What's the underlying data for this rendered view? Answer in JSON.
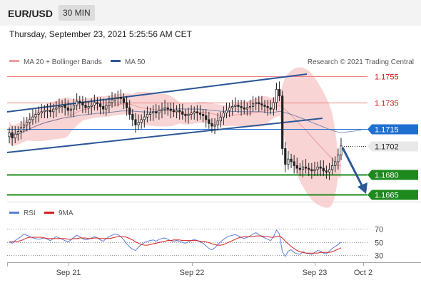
{
  "header": {
    "pair": "EUR/USD",
    "timeframe": "30 MIN",
    "datetime": "Thursday, September 23, 2021 5:25:56 AM CET"
  },
  "legend": {
    "bollinger": "MA 20 + Bollinger Bands",
    "ma50": "MA 50",
    "credit": "Research © 2021 Trading Central"
  },
  "rsi_legend": {
    "rsi": "RSI",
    "ma": "9MA"
  },
  "colors": {
    "candle": "#222222",
    "trendline": "#2b5797",
    "support": "#1e8a1e",
    "resistance": "#f08080",
    "current": "#1f6fd1",
    "band": "#f7c6c6",
    "ma20": "#f29a9a",
    "ma50": "#2b5797",
    "rsi": "#5b7fdb",
    "rsi_ma": "#d61f1f"
  },
  "chart_data": [
    {
      "type": "candlestick",
      "x_ticks": [
        "Sep 21",
        "Sep 22",
        "Sep 23",
        "Oct 2"
      ],
      "y_range": [
        1.1652,
        1.1762
      ],
      "levels": [
        {
          "value": 1.1755,
          "label": "1.1755",
          "kind": "resistance"
        },
        {
          "value": 1.1735,
          "label": "1.1735",
          "kind": "resistance"
        },
        {
          "value": 1.1715,
          "label": "1.1715",
          "kind": "current"
        },
        {
          "value": 1.1702,
          "label": "1.1702",
          "kind": "last"
        },
        {
          "value": 1.168,
          "label": "1.1680",
          "kind": "support"
        },
        {
          "value": 1.1665,
          "label": "1.1665",
          "kind": "support"
        }
      ],
      "close": [
        1.1712,
        1.1708,
        1.1711,
        1.1713,
        1.1716,
        1.1718,
        1.172,
        1.1722,
        1.1724,
        1.1726,
        1.1727,
        1.1728,
        1.1729,
        1.1729,
        1.1728,
        1.173,
        1.1731,
        1.1732,
        1.1733,
        1.1731,
        1.1729,
        1.173,
        1.1733,
        1.1736,
        1.1735,
        1.1733,
        1.1731,
        1.1732,
        1.1733,
        1.1735,
        1.1734,
        1.1732,
        1.173,
        1.1733,
        1.1735,
        1.1737,
        1.1738,
        1.1739,
        1.1738,
        1.1735,
        1.1731,
        1.1726,
        1.1722,
        1.1718,
        1.172,
        1.1722,
        1.1724,
        1.1726,
        1.1727,
        1.1728,
        1.1727,
        1.1729,
        1.173,
        1.1731,
        1.173,
        1.1729,
        1.1728,
        1.1729,
        1.1728,
        1.1726,
        1.1725,
        1.1726,
        1.1727,
        1.1728,
        1.1727,
        1.1726,
        1.1725,
        1.1722,
        1.1719,
        1.1717,
        1.1718,
        1.1721,
        1.1724,
        1.1727,
        1.1729,
        1.1731,
        1.1732,
        1.1733,
        1.1732,
        1.1731,
        1.173,
        1.1731,
        1.1732,
        1.1734,
        1.1735,
        1.1734,
        1.1733,
        1.1732,
        1.1731,
        1.173,
        1.1735,
        1.1745,
        1.174,
        1.17,
        1.1688,
        1.1692,
        1.169,
        1.1687,
        1.1685,
        1.1684,
        1.1686,
        1.1685,
        1.1684,
        1.1683,
        1.1684,
        1.1686,
        1.1685,
        1.1683,
        1.1682,
        1.1684,
        1.1687,
        1.169,
        1.1695,
        1.1702
      ],
      "rsi_ticks": [
        70,
        50,
        30
      ],
      "rsi_range": [
        20,
        80
      ],
      "rsi": [
        50,
        48,
        52,
        55,
        58,
        62,
        60,
        58,
        56,
        55,
        54,
        55,
        56,
        54,
        52,
        55,
        58,
        56,
        54,
        52,
        50,
        53,
        57,
        60,
        58,
        55,
        53,
        54,
        56,
        58,
        56,
        53,
        51,
        55,
        58,
        60,
        62,
        61,
        58,
        53,
        47,
        42,
        39,
        37,
        42,
        46,
        49,
        51,
        52,
        53,
        51,
        54,
        55,
        56,
        54,
        52,
        51,
        52,
        51,
        49,
        48,
        50,
        52,
        54,
        52,
        50,
        48,
        44,
        40,
        38,
        41,
        46,
        50,
        54,
        57,
        59,
        60,
        61,
        59,
        57,
        55,
        57,
        59,
        62,
        64,
        61,
        58,
        56,
        54,
        52,
        58,
        68,
        62,
        35,
        28,
        36,
        38,
        34,
        32,
        31,
        35,
        33,
        32,
        31,
        34,
        37,
        36,
        33,
        32,
        36,
        40,
        43,
        46,
        50
      ],
      "rsi_ma": [
        50,
        50,
        50,
        51,
        52,
        54,
        56,
        57,
        57,
        57,
        57,
        57,
        56,
        55,
        55,
        55,
        55,
        55,
        55,
        55,
        54,
        54,
        55,
        55,
        56,
        56,
        56,
        55,
        55,
        56,
        56,
        55,
        55,
        55,
        55,
        56,
        57,
        58,
        58,
        58,
        57,
        55,
        53,
        50,
        48,
        46,
        45,
        45,
        46,
        47,
        48,
        49,
        50,
        51,
        52,
        52,
        53,
        53,
        53,
        52,
        52,
        52,
        52,
        52,
        52,
        51,
        51,
        50,
        49,
        47,
        46,
        45,
        45,
        46,
        48,
        50,
        52,
        54,
        56,
        57,
        58,
        58,
        58,
        58,
        59,
        59,
        59,
        58,
        58,
        57,
        57,
        58,
        59,
        56,
        51,
        47,
        43,
        40,
        37,
        35,
        34,
        33,
        33,
        33,
        33,
        33,
        34,
        34,
        34,
        34,
        35,
        37,
        39,
        41
      ]
    }
  ]
}
